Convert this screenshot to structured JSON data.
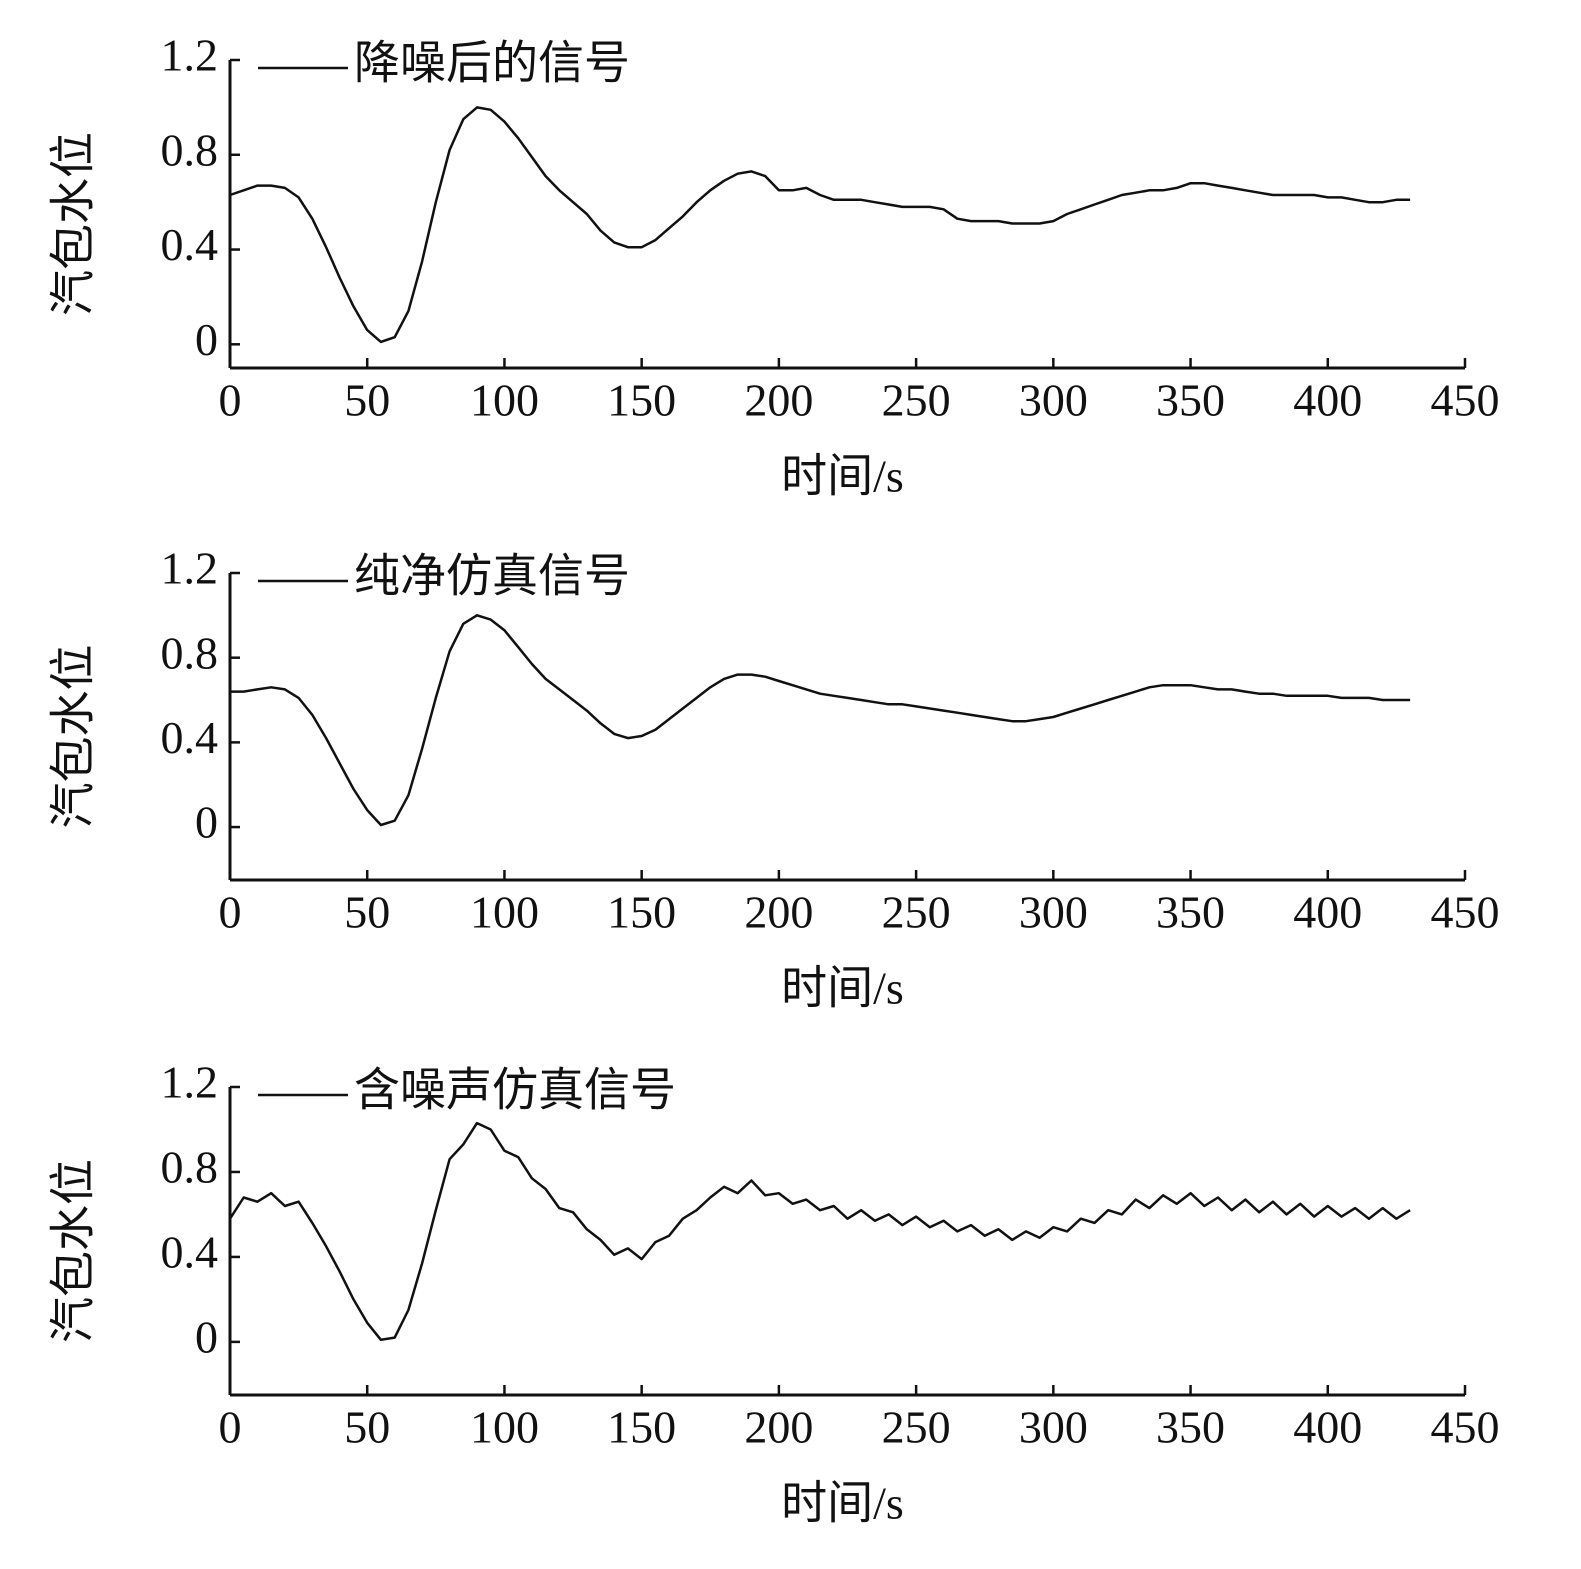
{
  "chart_data": [
    {
      "type": "line",
      "xlabel": "时间/s",
      "ylabel": "汽包水位",
      "xlim": [
        0,
        450
      ],
      "ylim": [
        -0.1,
        1.2
      ],
      "xticks": [
        0,
        50,
        100,
        150,
        200,
        250,
        300,
        350,
        400,
        450
      ],
      "yticks": [
        0,
        0.4,
        0.8,
        1.2
      ],
      "grid": false,
      "legend": "upper left",
      "x": [
        0,
        5,
        10,
        15,
        20,
        25,
        30,
        35,
        40,
        45,
        50,
        55,
        60,
        65,
        70,
        75,
        80,
        85,
        90,
        95,
        100,
        105,
        110,
        115,
        120,
        125,
        130,
        135,
        140,
        145,
        150,
        155,
        160,
        165,
        170,
        175,
        180,
        185,
        190,
        195,
        200,
        205,
        210,
        215,
        220,
        225,
        230,
        235,
        240,
        245,
        250,
        255,
        260,
        265,
        270,
        275,
        280,
        285,
        290,
        295,
        300,
        305,
        310,
        315,
        320,
        325,
        330,
        335,
        340,
        345,
        350,
        355,
        360,
        365,
        370,
        375,
        380,
        385,
        390,
        395,
        400,
        405,
        410,
        415,
        420,
        425,
        430
      ],
      "series": [
        {
          "name": "降噪后的信号",
          "color": "#111111",
          "values": [
            0.63,
            0.65,
            0.67,
            0.67,
            0.66,
            0.62,
            0.53,
            0.41,
            0.28,
            0.16,
            0.06,
            0.01,
            0.03,
            0.14,
            0.35,
            0.6,
            0.82,
            0.95,
            1.0,
            0.99,
            0.94,
            0.87,
            0.79,
            0.71,
            0.65,
            0.6,
            0.55,
            0.48,
            0.43,
            0.41,
            0.41,
            0.44,
            0.49,
            0.54,
            0.6,
            0.65,
            0.69,
            0.72,
            0.73,
            0.71,
            0.65,
            0.65,
            0.66,
            0.63,
            0.61,
            0.61,
            0.61,
            0.6,
            0.59,
            0.58,
            0.58,
            0.58,
            0.57,
            0.53,
            0.52,
            0.52,
            0.52,
            0.51,
            0.51,
            0.51,
            0.52,
            0.55,
            0.57,
            0.59,
            0.61,
            0.63,
            0.64,
            0.65,
            0.65,
            0.66,
            0.68,
            0.68,
            0.67,
            0.66,
            0.65,
            0.64,
            0.63,
            0.63,
            0.63,
            0.63,
            0.62,
            0.62,
            0.61,
            0.6,
            0.6,
            0.61,
            0.61
          ]
        }
      ]
    },
    {
      "type": "line",
      "xlabel": "时间/s",
      "ylabel": "汽包水位",
      "xlim": [
        0,
        450
      ],
      "ylim": [
        -0.25,
        1.2
      ],
      "xticks": [
        0,
        50,
        100,
        150,
        200,
        250,
        300,
        350,
        400,
        450
      ],
      "yticks": [
        0,
        0.4,
        0.8,
        1.2
      ],
      "grid": false,
      "legend": "upper left",
      "x": [
        0,
        5,
        10,
        15,
        20,
        25,
        30,
        35,
        40,
        45,
        50,
        55,
        60,
        65,
        70,
        75,
        80,
        85,
        90,
        95,
        100,
        105,
        110,
        115,
        120,
        125,
        130,
        135,
        140,
        145,
        150,
        155,
        160,
        165,
        170,
        175,
        180,
        185,
        190,
        195,
        200,
        205,
        210,
        215,
        220,
        225,
        230,
        235,
        240,
        245,
        250,
        255,
        260,
        265,
        270,
        275,
        280,
        285,
        290,
        295,
        300,
        305,
        310,
        315,
        320,
        325,
        330,
        335,
        340,
        345,
        350,
        355,
        360,
        365,
        370,
        375,
        380,
        385,
        390,
        395,
        400,
        405,
        410,
        415,
        420,
        425,
        430
      ],
      "series": [
        {
          "name": "纯净仿真信号",
          "color": "#111111",
          "values": [
            0.64,
            0.64,
            0.65,
            0.66,
            0.65,
            0.61,
            0.53,
            0.42,
            0.3,
            0.18,
            0.08,
            0.01,
            0.03,
            0.15,
            0.37,
            0.61,
            0.83,
            0.96,
            1.0,
            0.98,
            0.93,
            0.85,
            0.77,
            0.7,
            0.65,
            0.6,
            0.55,
            0.49,
            0.44,
            0.42,
            0.43,
            0.46,
            0.51,
            0.56,
            0.61,
            0.66,
            0.7,
            0.72,
            0.72,
            0.71,
            0.69,
            0.67,
            0.65,
            0.63,
            0.62,
            0.61,
            0.6,
            0.59,
            0.58,
            0.58,
            0.57,
            0.56,
            0.55,
            0.54,
            0.53,
            0.52,
            0.51,
            0.5,
            0.5,
            0.51,
            0.52,
            0.54,
            0.56,
            0.58,
            0.6,
            0.62,
            0.64,
            0.66,
            0.67,
            0.67,
            0.67,
            0.66,
            0.65,
            0.65,
            0.64,
            0.63,
            0.63,
            0.62,
            0.62,
            0.62,
            0.62,
            0.61,
            0.61,
            0.61,
            0.6,
            0.6,
            0.6
          ]
        }
      ]
    },
    {
      "type": "line",
      "xlabel": "时间/s",
      "ylabel": "汽包水位",
      "xlim": [
        0,
        450
      ],
      "ylim": [
        -0.25,
        1.2
      ],
      "xticks": [
        0,
        50,
        100,
        150,
        200,
        250,
        300,
        350,
        400,
        450
      ],
      "yticks": [
        0,
        0.4,
        0.8,
        1.2
      ],
      "grid": false,
      "legend": "upper left",
      "x": [
        0,
        5,
        10,
        15,
        20,
        25,
        30,
        35,
        40,
        45,
        50,
        55,
        60,
        65,
        70,
        75,
        80,
        85,
        90,
        95,
        100,
        105,
        110,
        115,
        120,
        125,
        130,
        135,
        140,
        145,
        150,
        155,
        160,
        165,
        170,
        175,
        180,
        185,
        190,
        195,
        200,
        205,
        210,
        215,
        220,
        225,
        230,
        235,
        240,
        245,
        250,
        255,
        260,
        265,
        270,
        275,
        280,
        285,
        290,
        295,
        300,
        305,
        310,
        315,
        320,
        325,
        330,
        335,
        340,
        345,
        350,
        355,
        360,
        365,
        370,
        375,
        380,
        385,
        390,
        395,
        400,
        405,
        410,
        415,
        420,
        425,
        430
      ],
      "series": [
        {
          "name": "含噪声仿真信号",
          "color": "#111111",
          "values": [
            0.58,
            0.68,
            0.66,
            0.7,
            0.64,
            0.66,
            0.56,
            0.45,
            0.33,
            0.2,
            0.09,
            0.01,
            0.02,
            0.15,
            0.37,
            0.62,
            0.86,
            0.93,
            1.03,
            1.0,
            0.9,
            0.87,
            0.77,
            0.72,
            0.63,
            0.61,
            0.53,
            0.48,
            0.41,
            0.44,
            0.39,
            0.47,
            0.5,
            0.58,
            0.62,
            0.68,
            0.73,
            0.7,
            0.76,
            0.69,
            0.7,
            0.65,
            0.67,
            0.62,
            0.64,
            0.58,
            0.62,
            0.57,
            0.6,
            0.55,
            0.59,
            0.54,
            0.57,
            0.52,
            0.55,
            0.5,
            0.53,
            0.48,
            0.52,
            0.49,
            0.54,
            0.52,
            0.58,
            0.56,
            0.62,
            0.6,
            0.67,
            0.63,
            0.69,
            0.65,
            0.7,
            0.64,
            0.68,
            0.62,
            0.67,
            0.61,
            0.66,
            0.6,
            0.65,
            0.59,
            0.64,
            0.59,
            0.63,
            0.58,
            0.63,
            0.58,
            0.62
          ]
        }
      ]
    }
  ]
}
